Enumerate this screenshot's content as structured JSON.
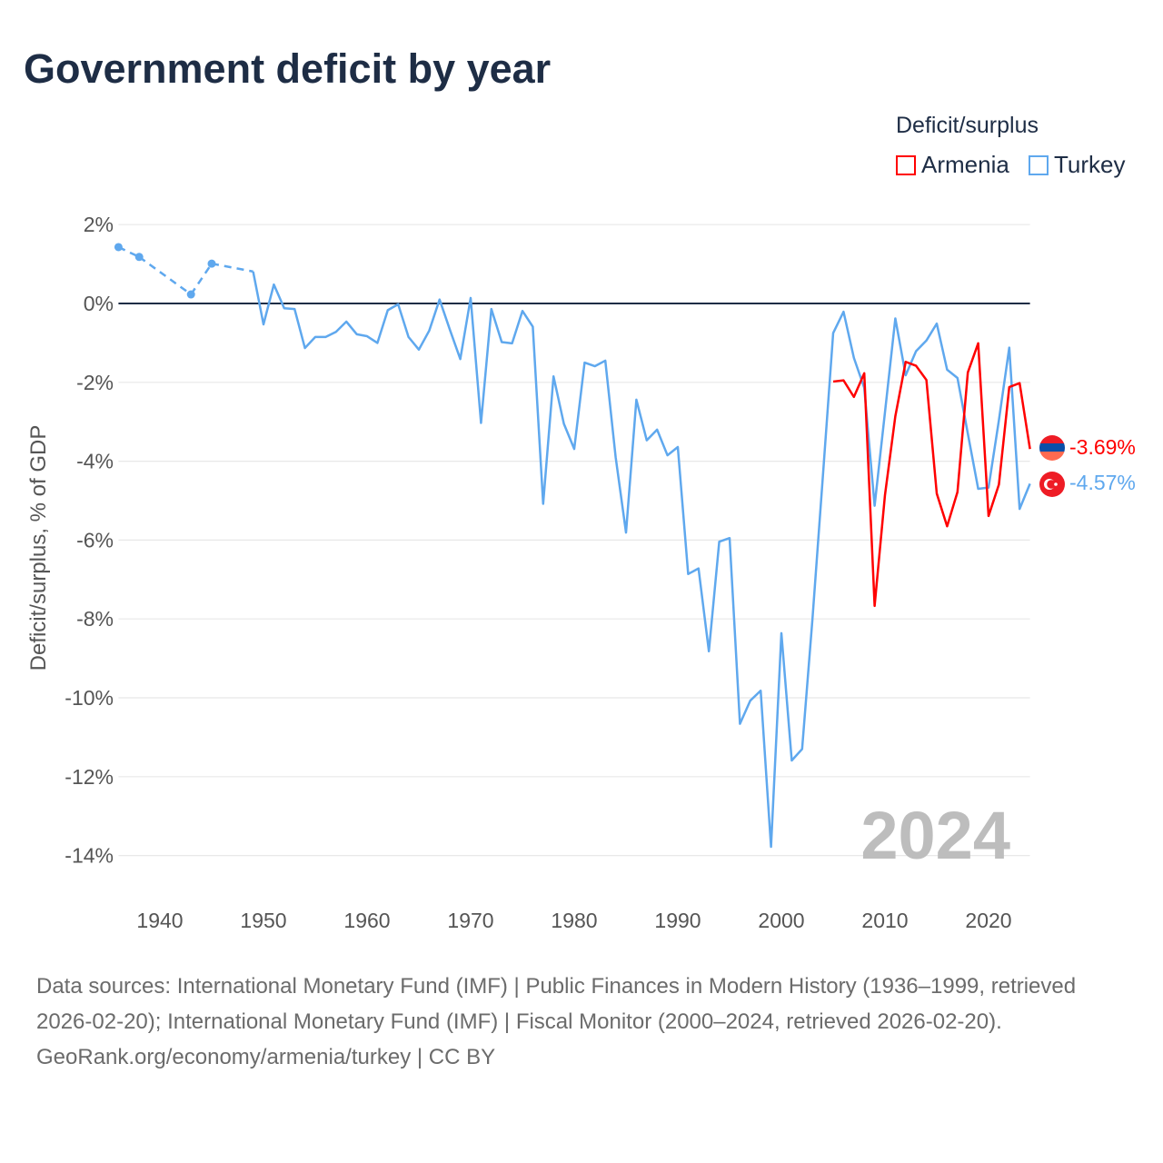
{
  "title": "Government deficit by year",
  "legend": {
    "title": "Deficit/surplus",
    "items": [
      {
        "name": "Armenia",
        "color": "#ff0000"
      },
      {
        "name": "Turkey",
        "color": "#5fa8ee"
      }
    ]
  },
  "watermark_year": "2024",
  "footer": {
    "sources": "Data sources: International Monetary Fund (IMF) | Public Finances in Modern History (1936–1999, retrieved 2026-02-20); International Monetary Fund (IMF) | Fiscal Monitor (2000–2024, retrieved 2026-02-20).",
    "credit": "GeoRank.org/economy/armenia/turkey | CC BY"
  },
  "chart_data": {
    "type": "line",
    "title": "Government deficit by year",
    "xlabel": "",
    "ylabel": "Deficit/surplus, % of GDP",
    "xlim": [
      1936,
      2024
    ],
    "ylim": [
      -14,
      2
    ],
    "x_ticks": [
      1940,
      1950,
      1960,
      1970,
      1980,
      1990,
      2000,
      2010,
      2020
    ],
    "y_ticks": [
      2,
      0,
      -2,
      -4,
      -6,
      -8,
      -10,
      -12,
      -14
    ],
    "y_tick_labels": [
      "2%",
      "0%",
      "-2%",
      "-4%",
      "-6%",
      "-8%",
      "-10%",
      "-12%",
      "-14%"
    ],
    "grid": true,
    "legend_position": "top-right",
    "series": [
      {
        "name": "Armenia",
        "color": "#ff0000",
        "end_label": "-3.69%",
        "points": [
          [
            2005,
            -1.98
          ],
          [
            2006,
            -1.95
          ],
          [
            2007,
            -2.37
          ],
          [
            2008,
            -1.77
          ],
          [
            2009,
            -7.67
          ],
          [
            2010,
            -4.86
          ],
          [
            2011,
            -2.86
          ],
          [
            2012,
            -1.48
          ],
          [
            2013,
            -1.58
          ],
          [
            2014,
            -1.94
          ],
          [
            2015,
            -4.82
          ],
          [
            2016,
            -5.65
          ],
          [
            2017,
            -4.78
          ],
          [
            2018,
            -1.75
          ],
          [
            2019,
            -1.01
          ],
          [
            2020,
            -5.39
          ],
          [
            2021,
            -4.59
          ],
          [
            2022,
            -2.12
          ],
          [
            2023,
            -2.02
          ],
          [
            2024,
            -3.69
          ]
        ]
      },
      {
        "name": "Turkey",
        "color": "#5fa8ee",
        "end_label": "-4.57%",
        "points": [
          [
            1936,
            1.43
          ],
          [
            1938,
            1.18
          ],
          [
            1943,
            0.23
          ],
          [
            1945,
            1.01
          ],
          [
            1949,
            0.81
          ],
          [
            1950,
            -0.53
          ],
          [
            1951,
            0.48
          ],
          [
            1952,
            -0.12
          ],
          [
            1953,
            -0.14
          ],
          [
            1954,
            -1.13
          ],
          [
            1955,
            -0.85
          ],
          [
            1956,
            -0.85
          ],
          [
            1957,
            -0.72
          ],
          [
            1958,
            -0.46
          ],
          [
            1959,
            -0.78
          ],
          [
            1960,
            -0.83
          ],
          [
            1961,
            -1.0
          ],
          [
            1962,
            -0.17
          ],
          [
            1963,
            -0.02
          ],
          [
            1964,
            -0.85
          ],
          [
            1965,
            -1.17
          ],
          [
            1966,
            -0.69
          ],
          [
            1967,
            0.1
          ],
          [
            1968,
            -0.67
          ],
          [
            1969,
            -1.41
          ],
          [
            1970,
            0.14
          ],
          [
            1971,
            -3.03
          ],
          [
            1972,
            -0.14
          ],
          [
            1973,
            -0.98
          ],
          [
            1974,
            -1.01
          ],
          [
            1975,
            -0.19
          ],
          [
            1976,
            -0.59
          ],
          [
            1977,
            -5.08
          ],
          [
            1978,
            -1.85
          ],
          [
            1979,
            -3.05
          ],
          [
            1980,
            -3.69
          ],
          [
            1981,
            -1.5
          ],
          [
            1982,
            -1.59
          ],
          [
            1983,
            -1.45
          ],
          [
            1984,
            -3.9
          ],
          [
            1985,
            -5.81
          ],
          [
            1986,
            -2.44
          ],
          [
            1987,
            -3.47
          ],
          [
            1988,
            -3.2
          ],
          [
            1989,
            -3.85
          ],
          [
            1990,
            -3.64
          ],
          [
            1991,
            -6.86
          ],
          [
            1992,
            -6.72
          ],
          [
            1993,
            -8.82
          ],
          [
            1994,
            -6.04
          ],
          [
            1995,
            -5.95
          ],
          [
            1996,
            -10.66
          ],
          [
            1997,
            -10.07
          ],
          [
            1998,
            -9.82
          ],
          [
            1999,
            -13.78
          ],
          [
            2000,
            -8.36
          ],
          [
            2001,
            -11.59
          ],
          [
            2002,
            -11.3
          ],
          [
            2003,
            -8.0
          ],
          [
            2004,
            -4.4
          ],
          [
            2005,
            -0.75
          ],
          [
            2006,
            -0.21
          ],
          [
            2007,
            -1.38
          ],
          [
            2008,
            -2.14
          ],
          [
            2009,
            -5.13
          ],
          [
            2010,
            -2.76
          ],
          [
            2011,
            -0.38
          ],
          [
            2012,
            -1.82
          ],
          [
            2013,
            -1.21
          ],
          [
            2014,
            -0.94
          ],
          [
            2015,
            -0.51
          ],
          [
            2016,
            -1.68
          ],
          [
            2017,
            -1.89
          ],
          [
            2018,
            -3.3
          ],
          [
            2019,
            -4.7
          ],
          [
            2020,
            -4.67
          ],
          [
            2021,
            -2.96
          ],
          [
            2022,
            -1.12
          ],
          [
            2023,
            -5.21
          ],
          [
            2024,
            -4.57
          ]
        ]
      }
    ]
  }
}
